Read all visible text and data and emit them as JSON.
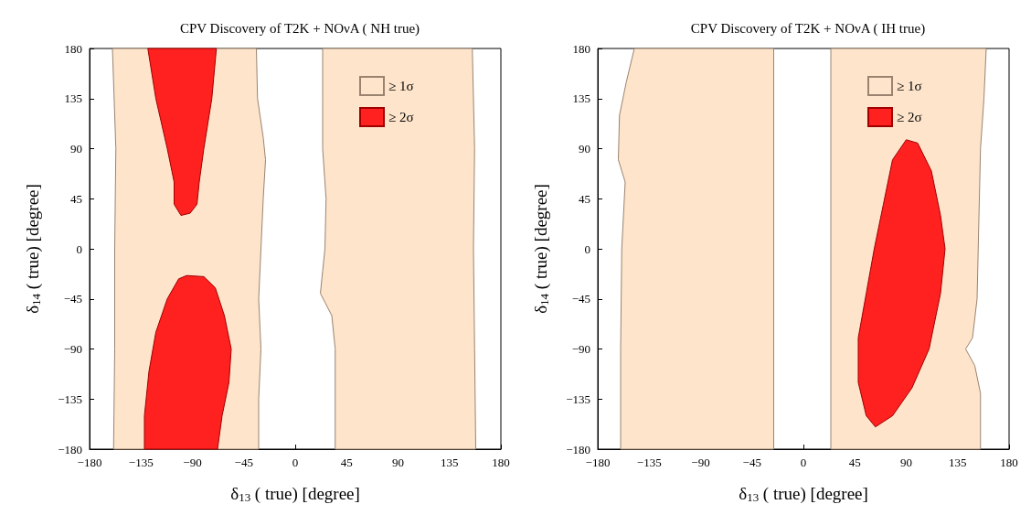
{
  "chart_data": [
    {
      "type": "area",
      "title": "CPV Discovery of T2K + NOνA ( NH true)",
      "xlabel": "δ$_{13}$ ( true) [degree]",
      "ylabel": "δ$_{14}$ ( true) [degree]",
      "xlim": [
        -180,
        180
      ],
      "ylim": [
        -180,
        180
      ],
      "xticks": [
        -180,
        -135,
        -90,
        -45,
        0,
        45,
        90,
        135,
        180
      ],
      "yticks": [
        -180,
        -135,
        -90,
        -45,
        0,
        45,
        90,
        135,
        180
      ],
      "grid": false,
      "legend": "top right",
      "series": [
        {
          "name": "≥ 1σ",
          "color": "#fde4cb",
          "x": [
            -160,
            -34,
            -33,
            -28,
            -26,
            -28,
            -30,
            -32,
            -30,
            -32,
            -32,
            -159,
            -158,
            -158,
            -157
          ],
          "values": [
            180,
            180,
            135,
            100,
            80,
            45,
            0,
            -45,
            -90,
            -135,
            -180,
            -180,
            -90,
            0,
            90
          ]
        },
        {
          "color": "#fde4cb",
          "x": [
            24,
            155,
            157,
            156,
            157,
            158,
            35,
            35,
            32,
            22,
            24,
            26,
            27,
            24,
            24
          ],
          "values": [
            180,
            180,
            90,
            0,
            -90,
            -180,
            -180,
            -90,
            -60,
            -40,
            -20,
            0,
            45,
            90,
            135
          ]
        },
        {
          "name": "≥ 2σ",
          "color": "#ff2020",
          "x": [
            -129,
            -69,
            -73,
            -80,
            -84,
            -86,
            -92,
            -100,
            -106,
            -106,
            -112,
            -122
          ],
          "values": [
            180,
            180,
            135,
            90,
            60,
            40,
            32,
            30,
            40,
            60,
            90,
            135
          ]
        },
        {
          "color": "#ff2020",
          "x": [
            -95,
            -80,
            -70,
            -62,
            -56,
            -58,
            -64,
            -68,
            -132,
            -132,
            -128,
            -122,
            -112,
            -102
          ],
          "values": [
            -24,
            -25,
            -35,
            -60,
            -90,
            -120,
            -150,
            -180,
            -180,
            -150,
            -110,
            -75,
            -45,
            -27
          ]
        }
      ]
    },
    {
      "type": "area",
      "title": "CPV Discovery of T2K + NOνA ( IH true)",
      "xlabel": "δ$_{13}$ ( true) [degree]",
      "ylabel": "δ$_{14}$ ( true) [degree]",
      "xlim": [
        -180,
        180
      ],
      "ylim": [
        -180,
        180
      ],
      "xticks": [
        -180,
        -135,
        -90,
        -45,
        0,
        45,
        90,
        135,
        180
      ],
      "yticks": [
        -180,
        -135,
        -90,
        -45,
        0,
        45,
        90,
        135,
        180
      ],
      "grid": false,
      "legend": "top right",
      "series": [
        {
          "name": "≥ 1σ",
          "color": "#fde4cb",
          "x": [
            -148,
            -26,
            -26,
            -160,
            -160,
            -159,
            -156,
            -162,
            -161,
            -155
          ],
          "values": [
            180,
            180,
            -180,
            -180,
            -90,
            0,
            60,
            80,
            120,
            150
          ]
        },
        {
          "color": "#fde4cb",
          "x": [
            24,
            160,
            158,
            155,
            153,
            152,
            148,
            142,
            150,
            155,
            155,
            24
          ],
          "values": [
            180,
            180,
            135,
            90,
            0,
            -45,
            -80,
            -90,
            -105,
            -130,
            -180,
            -180
          ]
        },
        {
          "name": "≥ 2σ",
          "color": "#ff2020",
          "x": [
            90,
            100,
            112,
            120,
            124,
            120,
            110,
            95,
            78,
            63,
            55,
            48,
            48,
            55,
            62,
            70,
            78
          ],
          "values": [
            98,
            95,
            70,
            30,
            0,
            -40,
            -90,
            -125,
            -150,
            -160,
            -150,
            -120,
            -80,
            -40,
            0,
            40,
            80
          ]
        }
      ]
    }
  ]
}
